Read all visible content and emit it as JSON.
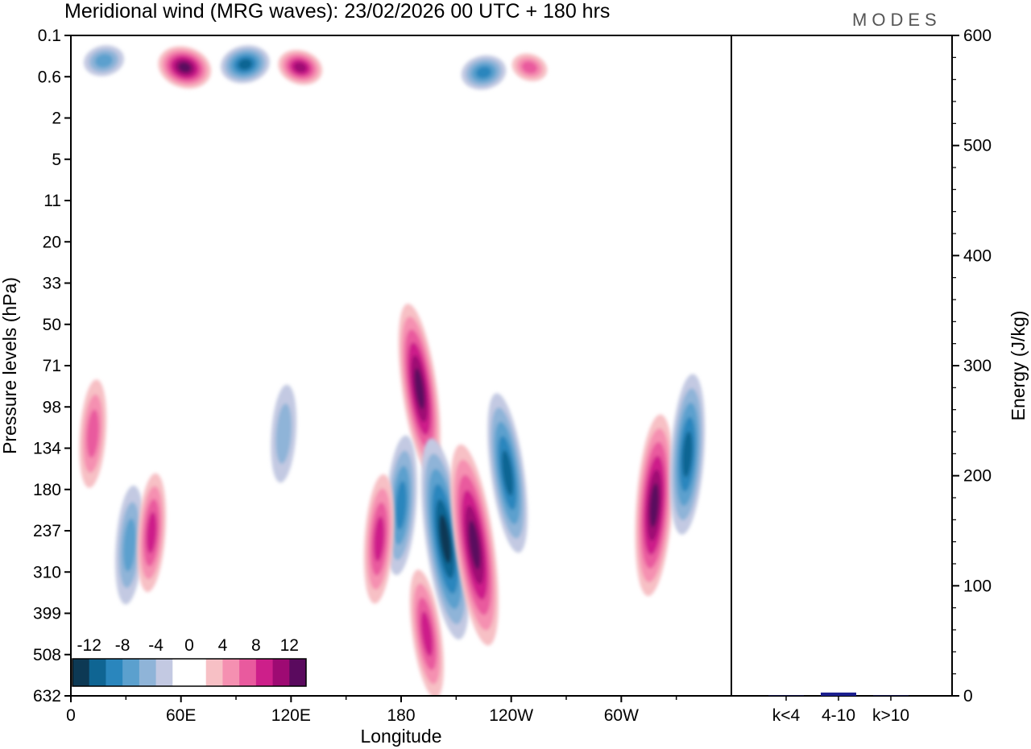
{
  "chart_data": {
    "type": "heatmap",
    "title": "Meridional wind (MRG waves):  23/02/2026  00 UTC  + 180 hrs",
    "logo": "MODES",
    "xlabel": "Longitude",
    "ylabel": "Pressure levels (hPa)",
    "x_ticks": [
      "0",
      "60E",
      "120E",
      "180",
      "120W",
      "60W"
    ],
    "y_ticks": [
      "0.1",
      "0.6",
      "2",
      "5",
      "11",
      "20",
      "33",
      "50",
      "71",
      "98",
      "134",
      "180",
      "237",
      "310",
      "399",
      "508",
      "632"
    ],
    "colorbar": {
      "labels": [
        "-12",
        "-8",
        "-4",
        "0",
        "4",
        "8",
        "12"
      ],
      "levels": [
        -14,
        -12,
        -10,
        -8,
        -6,
        -4,
        -2,
        2,
        4,
        6,
        8,
        10,
        12,
        14
      ],
      "colors": [
        "#0d3954",
        "#0f6593",
        "#2a86bd",
        "#5ba0ce",
        "#8fb4d8",
        "#c3c9e2",
        "#ffffff",
        "#ffffff",
        "#f7c0c5",
        "#f590b1",
        "#e95a9e",
        "#cd1f8a",
        "#9e0a73",
        "#5a0a5e"
      ]
    },
    "features": [
      {
        "lon": 18,
        "level": 0.3,
        "value": -8
      },
      {
        "lon": 62,
        "level": 0.4,
        "value": 14
      },
      {
        "lon": 95,
        "level": 0.35,
        "value": -12
      },
      {
        "lon": 125,
        "level": 0.4,
        "value": 10
      },
      {
        "lon": 225,
        "level": 0.5,
        "value": -10
      },
      {
        "lon": 250,
        "level": 0.4,
        "value": 6
      },
      {
        "lon": 190,
        "level": 85,
        "value": 13
      },
      {
        "lon": 204,
        "level": 250,
        "value": -16
      },
      {
        "lon": 220,
        "level": 260,
        "value": 16
      },
      {
        "lon": 238,
        "level": 160,
        "value": -12
      },
      {
        "lon": 318,
        "level": 200,
        "value": 14
      },
      {
        "lon": 336,
        "level": 140,
        "value": -12
      },
      {
        "lon": 180,
        "level": 200,
        "value": -10
      },
      {
        "lon": 168,
        "level": 250,
        "value": 9
      },
      {
        "lon": 32,
        "level": 260,
        "value": -8
      },
      {
        "lon": 44,
        "level": 240,
        "value": 8
      },
      {
        "lon": 12,
        "level": 120,
        "value": 7
      },
      {
        "lon": 116,
        "level": 120,
        "value": -6
      },
      {
        "lon": 194,
        "level": 450,
        "value": 9
      }
    ],
    "energy_panel": {
      "ylabel": "Energy (J/kg)",
      "ylim": [
        0,
        600
      ],
      "y_ticks": [
        "0",
        "100",
        "200",
        "300",
        "400",
        "500",
        "600"
      ],
      "categories": [
        "k<4",
        "4-10",
        "k>10"
      ],
      "values": [
        0.3,
        3.0,
        0.3
      ],
      "bar_color": "#1b1f8f"
    }
  }
}
